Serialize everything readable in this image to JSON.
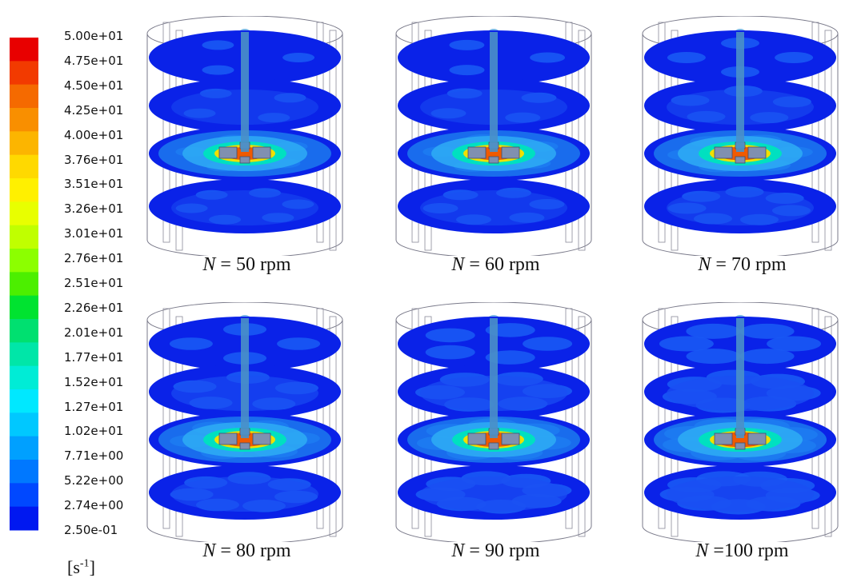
{
  "legend": {
    "labels": [
      "5.00e+01",
      "4.75e+01",
      "4.50e+01",
      "4.25e+01",
      "4.00e+01",
      "3.76e+01",
      "3.51e+01",
      "3.26e+01",
      "3.01e+01",
      "2.76e+01",
      "2.51e+01",
      "2.26e+01",
      "2.01e+01",
      "1.77e+01",
      "1.52e+01",
      "1.27e+01",
      "1.02e+01",
      "7.71e+00",
      "5.22e+00",
      "2.74e+00",
      "2.50e-01"
    ],
    "colors": [
      "#e80000",
      "#f23a00",
      "#f56a00",
      "#f98f00",
      "#fcb500",
      "#ffd900",
      "#fff000",
      "#e8ff00",
      "#c0ff00",
      "#8cff00",
      "#4cef00",
      "#00e330",
      "#00e070",
      "#00e6a8",
      "#00ecd6",
      "#00e8ff",
      "#00c8ff",
      "#00a0ff",
      "#0078ff",
      "#0048ff",
      "#0018f0"
    ],
    "unit_base": "[s",
    "unit_exp": "-1",
    "unit_close": "]"
  },
  "panels": [
    {
      "var": "N",
      "value": "= 50 rpm"
    },
    {
      "var": "N",
      "value": "= 60 rpm"
    },
    {
      "var": "N",
      "value": "= 70 rpm"
    },
    {
      "var": "N",
      "value": "= 80 rpm"
    },
    {
      "var": "N",
      "value": "= 90 rpm"
    },
    {
      "var": "N",
      "value": "=100 rpm"
    }
  ]
}
